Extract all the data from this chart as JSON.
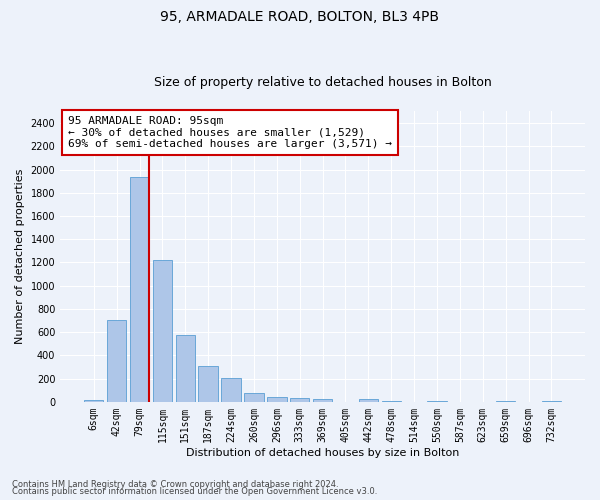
{
  "title1": "95, ARMADALE ROAD, BOLTON, BL3 4PB",
  "title2": "Size of property relative to detached houses in Bolton",
  "xlabel": "Distribution of detached houses by size in Bolton",
  "ylabel": "Number of detached properties",
  "bar_labels": [
    "6sqm",
    "42sqm",
    "79sqm",
    "115sqm",
    "151sqm",
    "187sqm",
    "224sqm",
    "260sqm",
    "296sqm",
    "333sqm",
    "369sqm",
    "405sqm",
    "442sqm",
    "478sqm",
    "514sqm",
    "550sqm",
    "587sqm",
    "623sqm",
    "659sqm",
    "696sqm",
    "732sqm"
  ],
  "bar_values": [
    15,
    705,
    1940,
    1225,
    575,
    305,
    205,
    75,
    40,
    30,
    25,
    0,
    25,
    10,
    0,
    10,
    0,
    0,
    10,
    0,
    10
  ],
  "bar_color": "#aec6e8",
  "bar_edge_color": "#5a9fd4",
  "annotation_text": "95 ARMADALE ROAD: 95sqm\n← 30% of detached houses are smaller (1,529)\n69% of semi-detached houses are larger (3,571) →",
  "annotation_box_color": "#ffffff",
  "annotation_box_edge": "#cc0000",
  "vline_color": "#cc0000",
  "footer1": "Contains HM Land Registry data © Crown copyright and database right 2024.",
  "footer2": "Contains public sector information licensed under the Open Government Licence v3.0.",
  "ylim": [
    0,
    2500
  ],
  "yticks": [
    0,
    200,
    400,
    600,
    800,
    1000,
    1200,
    1400,
    1600,
    1800,
    2000,
    2200,
    2400
  ],
  "bg_color": "#edf2fa",
  "grid_color": "#ffffff",
  "title_fontsize": 10,
  "subtitle_fontsize": 9,
  "axis_label_fontsize": 8,
  "tick_fontsize": 7,
  "annotation_fontsize": 8,
  "footer_fontsize": 6,
  "vline_x": 2.43
}
